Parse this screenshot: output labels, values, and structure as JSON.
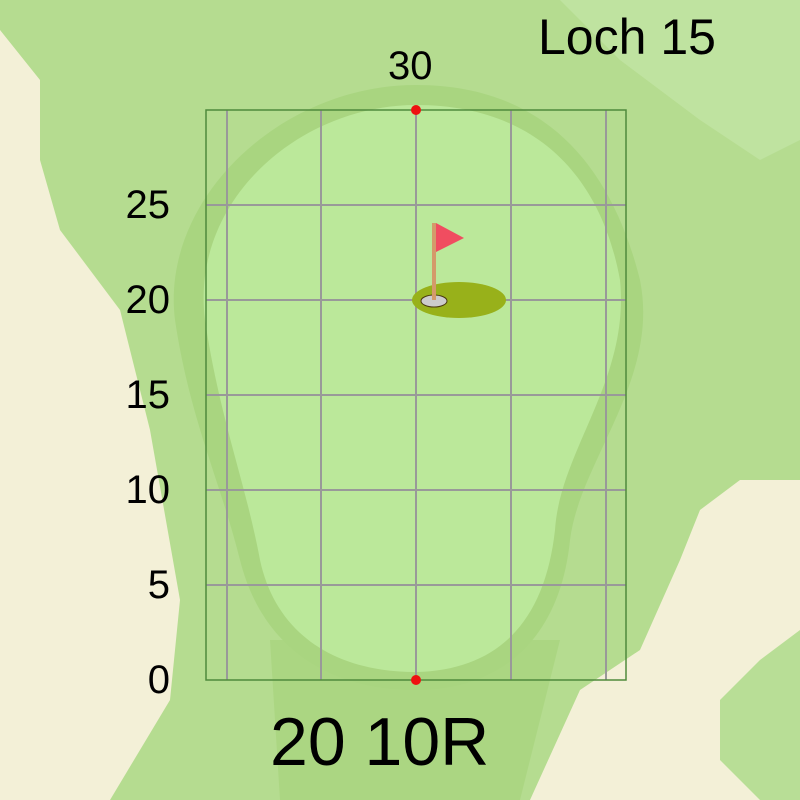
{
  "hole_title": "Loch 15",
  "top_distance_label": "30",
  "y_axis_ticks": [
    "0",
    "5",
    "10",
    "15",
    "20",
    "25"
  ],
  "pin_position_label": "20 10R",
  "pin": {
    "depth": 20,
    "offset": 0
  },
  "markers": [
    {
      "depth": 0,
      "offset": 0
    },
    {
      "depth": 30,
      "offset": 0
    }
  ],
  "colors": {
    "background": "#f3f0d7",
    "fairway": "#b5dc90",
    "rough": "#acd783",
    "fringe": "#a6d47c",
    "green": "#bbe89a",
    "flag": "#f04d60",
    "marker": "#ee1111",
    "hole_area": "#98b11a"
  }
}
